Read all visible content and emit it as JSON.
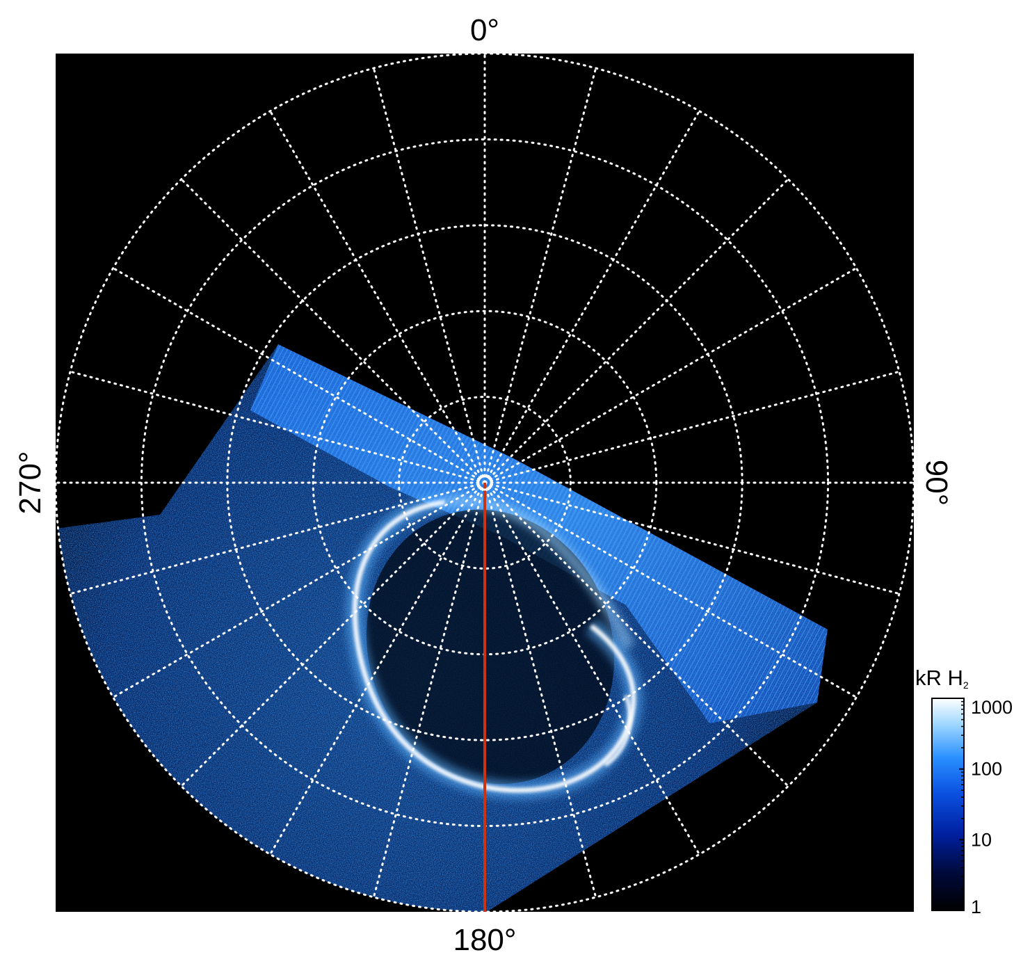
{
  "figure": {
    "longitude_labels": {
      "top": "0°",
      "right": "90°",
      "bottom": "180°",
      "left": "270°"
    },
    "grid": {
      "type": "polar",
      "meridian_step_deg": 15,
      "latitude_rings": 5,
      "style": "dotted-white"
    },
    "reference_meridian": {
      "longitude": "180°",
      "color": "#cc3311"
    },
    "colorbar": {
      "title": "kR H",
      "title_subscript": "2",
      "scale": "log",
      "range": [
        1,
        1000
      ],
      "ticks": [
        "1",
        "10",
        "100",
        "1000"
      ],
      "colors": [
        "#000000",
        "#000a3c",
        "#0020a0",
        "#0a50e0",
        "#2a90ff",
        "#a0d8ff",
        "#ffffff"
      ]
    },
    "background_color": "#000000"
  }
}
